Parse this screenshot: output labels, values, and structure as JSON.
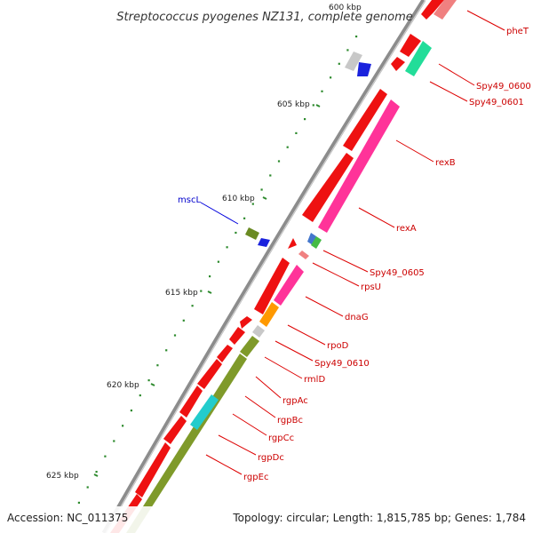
{
  "title": "Streptococcus pyogenes NZ131, complete genome",
  "footer": {
    "accession": "Accession: NC_011375",
    "summary": "Topology: circular; Length: 1,815,785 bp; Genes: 1,784"
  },
  "colors": {
    "backbone": "#909090",
    "forward_cds": "#ee1111",
    "rRNA_like": "#ff3399",
    "olive": "#7f9a2a",
    "teal": "#22dd99",
    "orange": "#ff9900",
    "cyan": "#22cccc",
    "gray": "#c8c8c8",
    "blue": "#1a22dd",
    "label_red": "#cc0000",
    "label_blue": "#0000cc"
  },
  "ticks": [
    {
      "label": "600 kbp"
    },
    {
      "label": "605 kbp"
    },
    {
      "label": "610 kbp"
    },
    {
      "label": "615 kbp"
    },
    {
      "label": "620 kbp"
    },
    {
      "label": "625 kbp"
    }
  ],
  "labels": [
    {
      "text": "pheT",
      "color": "red"
    },
    {
      "text": "Spy49_0600",
      "color": "red"
    },
    {
      "text": "Spy49_0601",
      "color": "red"
    },
    {
      "text": "rexB",
      "color": "red"
    },
    {
      "text": "rexA",
      "color": "red"
    },
    {
      "text": "mscL",
      "color": "blue"
    },
    {
      "text": "Spy49_0605",
      "color": "red"
    },
    {
      "text": "rpsU",
      "color": "red"
    },
    {
      "text": "dnaG",
      "color": "red"
    },
    {
      "text": "rpoD",
      "color": "red"
    },
    {
      "text": "Spy49_0610",
      "color": "red"
    },
    {
      "text": "rmlD",
      "color": "red"
    },
    {
      "text": "rgpAc",
      "color": "red"
    },
    {
      "text": "rgpBc",
      "color": "red"
    },
    {
      "text": "rgpCc",
      "color": "red"
    },
    {
      "text": "rgpDc",
      "color": "red"
    },
    {
      "text": "rgpEc",
      "color": "red"
    }
  ]
}
